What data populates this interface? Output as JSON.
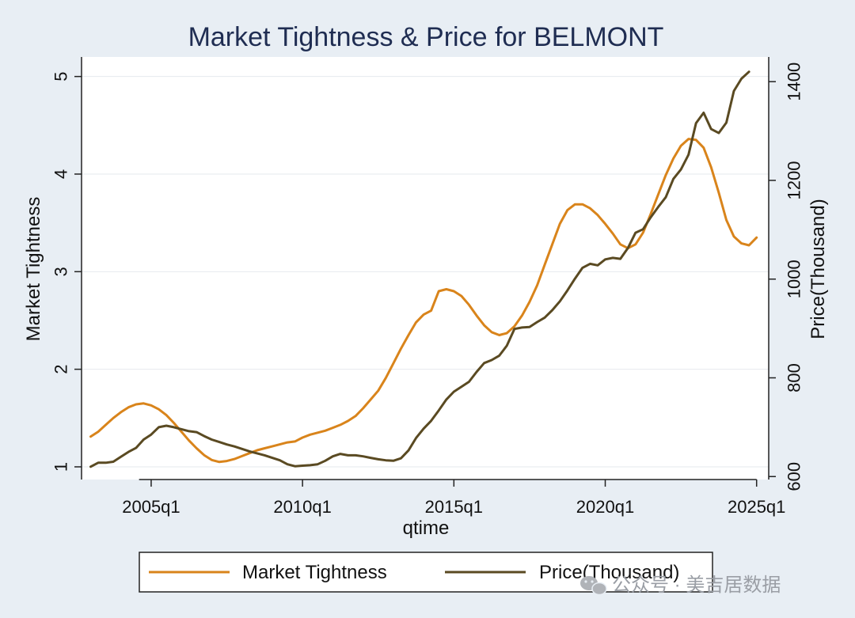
{
  "chart_data": {
    "type": "line",
    "title": "Market Tightness & Price for BELMONT",
    "xlabel": "qtime",
    "ylabel_left": "Market Tightness",
    "ylabel_right": "Price(Thousand)",
    "x_ticks": [
      {
        "year": 2005,
        "label": "2005q1"
      },
      {
        "year": 2010,
        "label": "2010q1"
      },
      {
        "year": 2015,
        "label": "2015q1"
      },
      {
        "year": 2020,
        "label": "2020q1"
      },
      {
        "year": 2025,
        "label": "2025q1"
      }
    ],
    "y_left_ticks": [
      1,
      2,
      3,
      4,
      5
    ],
    "y_right_ticks": [
      600,
      800,
      1000,
      1200,
      1400
    ],
    "xlim": [
      2002.7,
      2025.4
    ],
    "ylim_left": [
      0.87,
      5.2
    ],
    "ylim_right": [
      594,
      1450
    ],
    "grid": "horizontal",
    "legend_position": "bottom",
    "series": [
      {
        "name": "Market Tightness",
        "axis": "left",
        "color": "#d9841b",
        "points": [
          [
            2003.0,
            1.31
          ],
          [
            2003.25,
            1.36
          ],
          [
            2003.5,
            1.43
          ],
          [
            2003.75,
            1.5
          ],
          [
            2004.0,
            1.56
          ],
          [
            2004.25,
            1.61
          ],
          [
            2004.5,
            1.64
          ],
          [
            2004.75,
            1.65
          ],
          [
            2005.0,
            1.63
          ],
          [
            2005.25,
            1.59
          ],
          [
            2005.5,
            1.53
          ],
          [
            2005.75,
            1.45
          ],
          [
            2006.0,
            1.36
          ],
          [
            2006.25,
            1.27
          ],
          [
            2006.5,
            1.19
          ],
          [
            2006.75,
            1.12
          ],
          [
            2007.0,
            1.07
          ],
          [
            2007.25,
            1.05
          ],
          [
            2007.5,
            1.06
          ],
          [
            2007.75,
            1.08
          ],
          [
            2008.0,
            1.11
          ],
          [
            2008.25,
            1.14
          ],
          [
            2008.5,
            1.17
          ],
          [
            2008.75,
            1.19
          ],
          [
            2009.0,
            1.21
          ],
          [
            2009.25,
            1.23
          ],
          [
            2009.5,
            1.25
          ],
          [
            2009.75,
            1.26
          ],
          [
            2010.0,
            1.3
          ],
          [
            2010.25,
            1.33
          ],
          [
            2010.5,
            1.35
          ],
          [
            2010.75,
            1.37
          ],
          [
            2011.0,
            1.4
          ],
          [
            2011.25,
            1.43
          ],
          [
            2011.5,
            1.47
          ],
          [
            2011.75,
            1.52
          ],
          [
            2012.0,
            1.6
          ],
          [
            2012.25,
            1.69
          ],
          [
            2012.5,
            1.78
          ],
          [
            2012.75,
            1.91
          ],
          [
            2013.0,
            2.06
          ],
          [
            2013.25,
            2.21
          ],
          [
            2013.5,
            2.35
          ],
          [
            2013.75,
            2.48
          ],
          [
            2014.0,
            2.56
          ],
          [
            2014.25,
            2.6
          ],
          [
            2014.5,
            2.8
          ],
          [
            2014.75,
            2.82
          ],
          [
            2015.0,
            2.8
          ],
          [
            2015.25,
            2.75
          ],
          [
            2015.5,
            2.66
          ],
          [
            2015.75,
            2.55
          ],
          [
            2016.0,
            2.45
          ],
          [
            2016.25,
            2.38
          ],
          [
            2016.5,
            2.35
          ],
          [
            2016.75,
            2.37
          ],
          [
            2017.0,
            2.44
          ],
          [
            2017.25,
            2.55
          ],
          [
            2017.5,
            2.69
          ],
          [
            2017.75,
            2.86
          ],
          [
            2018.0,
            3.07
          ],
          [
            2018.25,
            3.28
          ],
          [
            2018.5,
            3.49
          ],
          [
            2018.75,
            3.63
          ],
          [
            2019.0,
            3.69
          ],
          [
            2019.25,
            3.69
          ],
          [
            2019.5,
            3.65
          ],
          [
            2019.75,
            3.58
          ],
          [
            2020.0,
            3.49
          ],
          [
            2020.25,
            3.39
          ],
          [
            2020.5,
            3.28
          ],
          [
            2020.75,
            3.24
          ],
          [
            2021.0,
            3.28
          ],
          [
            2021.25,
            3.4
          ],
          [
            2021.5,
            3.59
          ],
          [
            2021.75,
            3.79
          ],
          [
            2022.0,
            3.99
          ],
          [
            2022.25,
            4.16
          ],
          [
            2022.5,
            4.29
          ],
          [
            2022.75,
            4.36
          ],
          [
            2023.0,
            4.35
          ],
          [
            2023.25,
            4.27
          ],
          [
            2023.5,
            4.07
          ],
          [
            2023.75,
            3.81
          ],
          [
            2024.0,
            3.53
          ],
          [
            2024.25,
            3.36
          ],
          [
            2024.5,
            3.29
          ],
          [
            2024.75,
            3.27
          ],
          [
            2025.0,
            3.35
          ]
        ]
      },
      {
        "name": "Price(Thousand)",
        "axis": "right",
        "color": "#5a4a22",
        "points": [
          [
            2003.0,
            620
          ],
          [
            2003.25,
            628
          ],
          [
            2003.5,
            628
          ],
          [
            2003.75,
            630
          ],
          [
            2004.0,
            640
          ],
          [
            2004.25,
            650
          ],
          [
            2004.5,
            658
          ],
          [
            2004.75,
            675
          ],
          [
            2005.0,
            685
          ],
          [
            2005.25,
            700
          ],
          [
            2005.5,
            703
          ],
          [
            2005.75,
            700
          ],
          [
            2006.0,
            696
          ],
          [
            2006.25,
            692
          ],
          [
            2006.5,
            690
          ],
          [
            2006.75,
            682
          ],
          [
            2007.0,
            675
          ],
          [
            2007.25,
            670
          ],
          [
            2007.5,
            665
          ],
          [
            2007.75,
            661
          ],
          [
            2008.0,
            656
          ],
          [
            2008.25,
            651
          ],
          [
            2008.5,
            647
          ],
          [
            2008.75,
            643
          ],
          [
            2009.0,
            638
          ],
          [
            2009.25,
            633
          ],
          [
            2009.5,
            625
          ],
          [
            2009.75,
            621
          ],
          [
            2010.0,
            622
          ],
          [
            2010.25,
            623
          ],
          [
            2010.5,
            625
          ],
          [
            2010.75,
            632
          ],
          [
            2011.0,
            641
          ],
          [
            2011.25,
            646
          ],
          [
            2011.5,
            643
          ],
          [
            2011.75,
            643
          ],
          [
            2012.0,
            641
          ],
          [
            2012.25,
            638
          ],
          [
            2012.5,
            635
          ],
          [
            2012.75,
            633
          ],
          [
            2013.0,
            632
          ],
          [
            2013.25,
            637
          ],
          [
            2013.5,
            653
          ],
          [
            2013.75,
            678
          ],
          [
            2014.0,
            697
          ],
          [
            2014.25,
            713
          ],
          [
            2014.5,
            734
          ],
          [
            2014.75,
            756
          ],
          [
            2015.0,
            772
          ],
          [
            2015.25,
            782
          ],
          [
            2015.5,
            792
          ],
          [
            2015.75,
            812
          ],
          [
            2016.0,
            830
          ],
          [
            2016.25,
            836
          ],
          [
            2016.5,
            845
          ],
          [
            2016.75,
            865
          ],
          [
            2017.0,
            899
          ],
          [
            2017.25,
            902
          ],
          [
            2017.5,
            903
          ],
          [
            2017.75,
            913
          ],
          [
            2018.0,
            922
          ],
          [
            2018.25,
            937
          ],
          [
            2018.5,
            955
          ],
          [
            2018.75,
            977
          ],
          [
            2019.0,
            1001
          ],
          [
            2019.25,
            1023
          ],
          [
            2019.5,
            1031
          ],
          [
            2019.75,
            1028
          ],
          [
            2020.0,
            1040
          ],
          [
            2020.25,
            1043
          ],
          [
            2020.5,
            1041
          ],
          [
            2020.75,
            1063
          ],
          [
            2021.0,
            1094
          ],
          [
            2021.25,
            1101
          ],
          [
            2021.5,
            1125
          ],
          [
            2021.75,
            1146
          ],
          [
            2022.0,
            1166
          ],
          [
            2022.25,
            1203
          ],
          [
            2022.5,
            1222
          ],
          [
            2022.75,
            1252
          ],
          [
            2023.0,
            1316
          ],
          [
            2023.25,
            1337
          ],
          [
            2023.5,
            1304
          ],
          [
            2023.75,
            1296
          ],
          [
            2024.0,
            1317
          ],
          [
            2024.25,
            1381
          ],
          [
            2024.5,
            1406
          ],
          [
            2024.75,
            1420
          ]
        ]
      }
    ]
  },
  "legend": {
    "entries": [
      {
        "label": "Market Tightness",
        "color": "#d9841b"
      },
      {
        "label": "Price(Thousand)",
        "color": "#5a4a22"
      }
    ]
  },
  "watermark": {
    "text": "公众号 · 美吉居数据",
    "icon": "wechat-icon"
  },
  "colors": {
    "background": "#e8eef4",
    "plot_background": "#ffffff",
    "grid": "#e6eaee",
    "axis": "#222222",
    "title": "#1f2d52"
  }
}
